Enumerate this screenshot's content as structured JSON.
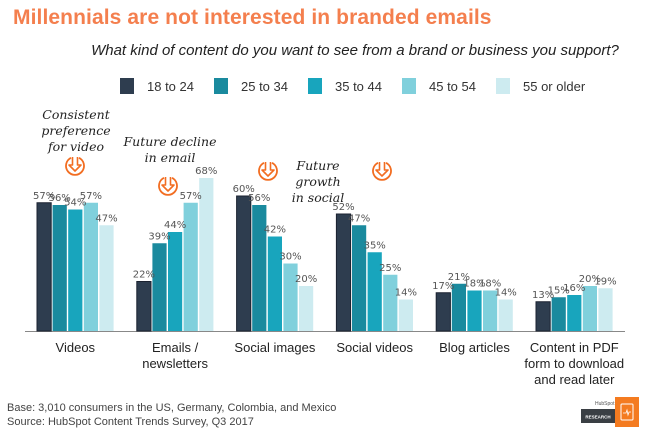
{
  "header": {
    "title": "Millennials are not interested in branded emails",
    "subtitle": "What kind of content do you want to see from a brand or business you support?"
  },
  "legend": [
    {
      "label": "18 to 24",
      "color": "#2e3d4f"
    },
    {
      "label": "25 to 34",
      "color": "#1a8a9e"
    },
    {
      "label": "35 to 44",
      "color": "#18a5bd"
    },
    {
      "label": "45 to 54",
      "color": "#80d0dc"
    },
    {
      "label": "55 or older",
      "color": "#cdebf0"
    }
  ],
  "annotations": {
    "video": "Consistent preference for video",
    "email": "Future decline in email",
    "social": "Future growth in social",
    "icon": "down-arrow-circle-icon",
    "icon_color": "#f26d21"
  },
  "chart_data": {
    "type": "bar",
    "title": "Millennials are not interested in branded emails",
    "subtitle": "What kind of content do you want to see from a brand or business you support?",
    "categories": [
      "Videos",
      "Emails / newsletters",
      "Social images",
      "Social videos",
      "Blog articles",
      "Content in PDF form to download and read later"
    ],
    "category_lines": [
      [
        "Videos"
      ],
      [
        "Emails /",
        "newsletters"
      ],
      [
        "Social images"
      ],
      [
        "Social videos"
      ],
      [
        "Blog articles"
      ],
      [
        "Content in PDF",
        "form to download",
        "and read later"
      ]
    ],
    "series": [
      {
        "name": "18 to 24",
        "values": [
          57,
          22,
          60,
          52,
          17,
          13
        ]
      },
      {
        "name": "25 to 34",
        "values": [
          56,
          39,
          56,
          47,
          21,
          15
        ]
      },
      {
        "name": "35 to 44",
        "values": [
          54,
          44,
          42,
          35,
          18,
          16
        ]
      },
      {
        "name": "45 to 54",
        "values": [
          57,
          57,
          30,
          25,
          18,
          20
        ]
      },
      {
        "name": "55 or older",
        "values": [
          47,
          68,
          20,
          14,
          14,
          19
        ]
      }
    ],
    "value_suffix": "%",
    "xlabel": "",
    "ylabel": "",
    "ylim": [
      0,
      70
    ],
    "grid": false,
    "legend_position": "top-center"
  },
  "footer": {
    "base": "Base: 3,010 consumers in the US, Germany, Colombia, and Mexico",
    "source": "Source: HubSpot Content Trends Survey, Q3 2017",
    "logo_top": "HubSpot",
    "logo_bottom": "RESEARCH"
  }
}
